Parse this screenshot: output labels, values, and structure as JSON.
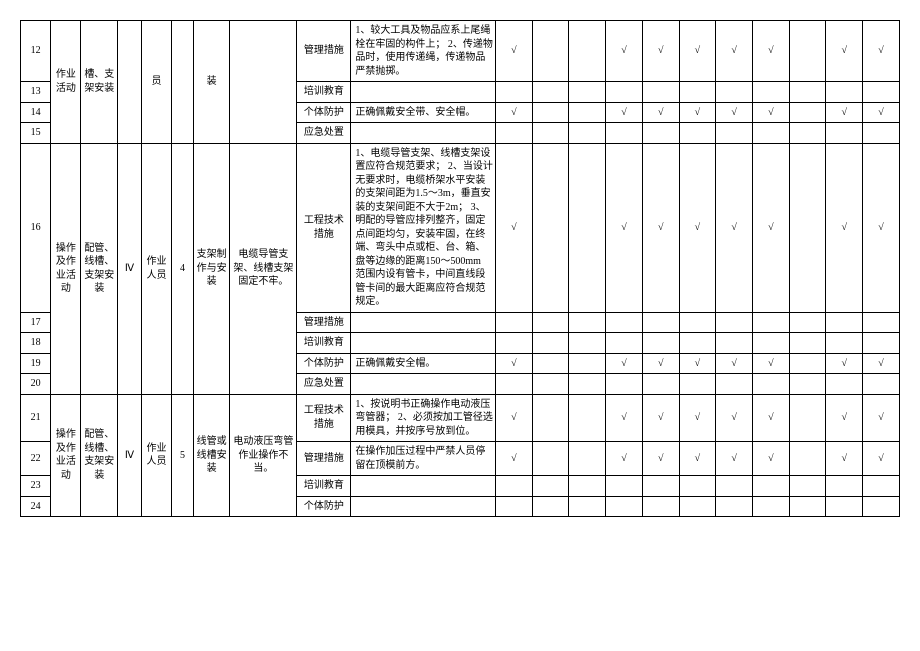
{
  "font": {
    "family": "SimSun",
    "size_pt": 9,
    "color": "#000000"
  },
  "border_color": "#000000",
  "background_color": "#ffffff",
  "check": "√",
  "labels": {
    "activity_a": "作业活动",
    "activity_b": "操作及作业活动",
    "comp_b": "配管、线槽、支架安装",
    "slot_frame_install": "槽、支架安装",
    "person_staff": "员",
    "worker": "作业人员",
    "install_short": "装",
    "frame_make_install": "支架制作与安装",
    "wire_or_slot_install": "线管或线槽安装",
    "hazard16": "电缆导管支架、线槽支架固定不牢。",
    "hazard21": "电动液压弯管作业操作不当。",
    "measure_mgmt": "管理措施",
    "measure_train": "培训教育",
    "measure_ppe": "个体防护",
    "measure_emerg": "应急处置",
    "measure_eng": "工程技术措施",
    "IV": "Ⅳ",
    "n4": "4",
    "n5": "5"
  },
  "rows": {
    "r12": {
      "no": "12",
      "desc": "1、较大工具及物品应系上尾绳栓在牢固的构件上；\n2、传递物品时，使用传递绳，传递物品严禁抛掷。"
    },
    "r13": {
      "no": "13"
    },
    "r14": {
      "no": "14",
      "desc": "正确佩戴安全带、安全帽。"
    },
    "r15": {
      "no": "15"
    },
    "r16": {
      "no": "16",
      "desc": "1、电缆导管支架、线槽支架设置应符合规范要求；\n2、当设计无要求时，电缆桥架水平安装的支架间距为1.5～3m，垂直安装的支架间距不大于2m；\n3、明配的导管应排列整齐，固定点间距均匀，安装牢固，在终端、弯头中点或柜、台、箱、盘等边缘的距离150～500mm 范围内设有管卡，中间直线段管卡间的最大距离应符合规范规定。"
    },
    "r17": {
      "no": "17"
    },
    "r18": {
      "no": "18"
    },
    "r19": {
      "no": "19",
      "desc": "正确佩戴安全帽。"
    },
    "r20": {
      "no": "20"
    },
    "r21": {
      "no": "21",
      "desc": "1、按说明书正确操作电动液压弯管器；\n2、必须按加工管径选用模具，并按序号放到位。"
    },
    "r22": {
      "no": "22",
      "desc": "在操作加压过程中严禁人员停留在顶模前方。"
    },
    "r23": {
      "no": "23"
    },
    "r24": {
      "no": "24"
    }
  },
  "checks": {
    "r12": [
      1,
      0,
      0,
      1,
      1,
      1,
      1,
      1,
      0,
      1,
      1
    ],
    "r14": [
      1,
      0,
      0,
      1,
      1,
      1,
      1,
      1,
      0,
      1,
      1
    ],
    "r16": [
      1,
      0,
      0,
      1,
      1,
      1,
      1,
      1,
      0,
      1,
      1
    ],
    "r19": [
      1,
      0,
      0,
      1,
      1,
      1,
      1,
      1,
      0,
      1,
      1
    ],
    "r21": [
      1,
      0,
      0,
      1,
      1,
      1,
      1,
      1,
      0,
      1,
      1
    ],
    "r22": [
      1,
      0,
      0,
      1,
      1,
      1,
      1,
      1,
      0,
      1,
      1
    ]
  }
}
